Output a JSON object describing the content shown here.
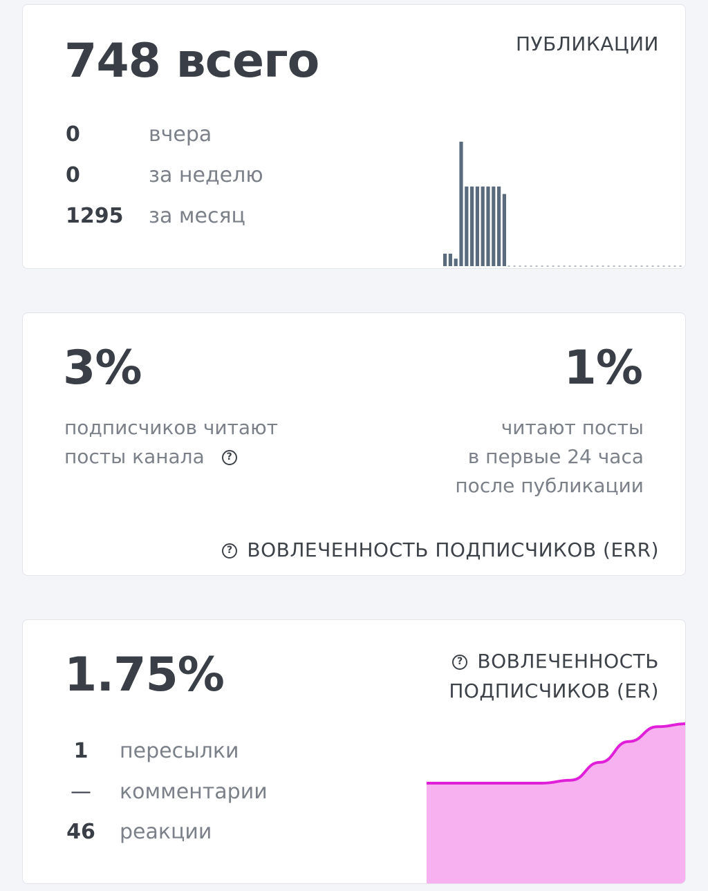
{
  "publications": {
    "total": "748 всего",
    "caption": "ПУБЛИКАЦИИ",
    "stats": [
      {
        "value": "0",
        "label": "вчера"
      },
      {
        "value": "0",
        "label": "за неделю"
      },
      {
        "value": "1295",
        "label": "за месяц"
      }
    ],
    "bar_color": "#5b6b7e"
  },
  "err": {
    "left_value": "3%",
    "left_text_line1": "подписчиков читают",
    "left_text_line2": "посты канала",
    "right_value": "1%",
    "right_text_line1": "читают посты",
    "right_text_line2": "в первые 24 часа",
    "right_text_line3": "после публикации",
    "caption": "ВОВЛЕЧЕННОСТЬ ПОДПИСЧИКОВ (ERR)",
    "help_icon": "question-circle-icon"
  },
  "er": {
    "value": "1.75%",
    "caption_line1": "ВОВЛЕЧЕННОСТЬ",
    "caption_line2": "ПОДПИСЧИКОВ (ER)",
    "help_icon": "question-circle-icon",
    "stats": [
      {
        "value": "1",
        "label": "пересылки"
      },
      {
        "value": "—",
        "label": "комментарии"
      },
      {
        "value": "46",
        "label": "реакции"
      }
    ],
    "line_color": "#e020d8",
    "fill_color": "#f6a8f0"
  },
  "chart_data": [
    {
      "type": "bar",
      "series": [
        {
          "values": [
            1,
            1,
            0.6,
            10,
            6.4,
            6.4,
            6.4,
            6.4,
            6.4,
            6.4,
            6.4,
            5.8,
            0,
            0,
            0,
            0,
            0,
            0,
            0,
            0,
            0,
            0,
            0,
            0,
            0,
            0,
            0
          ]
        }
      ],
      "grid": false
    },
    {
      "type": "area",
      "series": [
        {
          "values": [
            0,
            0,
            0,
            0,
            0,
            0.05,
            0.35,
            0.7,
            0.95,
            1
          ]
        }
      ],
      "grid": false
    }
  ]
}
